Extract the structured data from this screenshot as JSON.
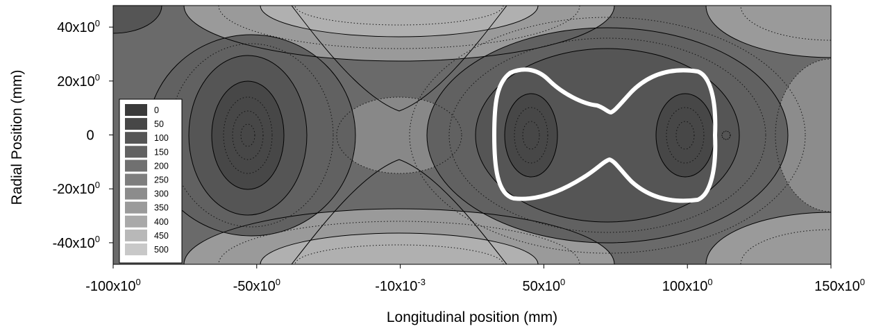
{
  "chart_data": {
    "type": "contour",
    "xlabel": "Longitudinal position (mm)",
    "ylabel": "Radial Position (mm)",
    "xlim": [
      -100,
      150
    ],
    "ylim": [
      -48,
      48
    ],
    "x_ticks": [
      {
        "value": -100,
        "base": "-100x10",
        "exp": "0"
      },
      {
        "value": -50,
        "base": "-50x10",
        "exp": "0"
      },
      {
        "value": 0,
        "base": "-10x10",
        "exp": "-3"
      },
      {
        "value": 50,
        "base": "50x10",
        "exp": "0"
      },
      {
        "value": 100,
        "base": "100x10",
        "exp": "0"
      },
      {
        "value": 150,
        "base": "150x10",
        "exp": "0"
      }
    ],
    "y_ticks": [
      {
        "value": 40,
        "base": "40x10",
        "exp": "0"
      },
      {
        "value": 20,
        "base": "20x10",
        "exp": "0"
      },
      {
        "value": 0,
        "base": "0",
        "exp": ""
      },
      {
        "value": -20,
        "base": "-20x10",
        "exp": "0"
      },
      {
        "value": -40,
        "base": "-40x10",
        "exp": "0"
      }
    ],
    "legend": {
      "placement": "middle-left",
      "levels": [
        {
          "label": "0",
          "color": "#3a3a3a"
        },
        {
          "label": "50",
          "color": "#474747"
        },
        {
          "label": "100",
          "color": "#555555"
        },
        {
          "label": "150",
          "color": "#626262"
        },
        {
          "label": "200",
          "color": "#707070"
        },
        {
          "label": "250",
          "color": "#7e7e7e"
        },
        {
          "label": "300",
          "color": "#8c8c8c"
        },
        {
          "label": "350",
          "color": "#9a9a9a"
        },
        {
          "label": "400",
          "color": "#a9a9a9"
        },
        {
          "label": "450",
          "color": "#b8b8b8"
        },
        {
          "label": "500",
          "color": "#c8c8c8"
        }
      ]
    },
    "minima": [
      {
        "x": -52,
        "y": 0
      },
      {
        "x": 45,
        "y": 0
      },
      {
        "x": 100,
        "y": 0
      }
    ],
    "highlight_contour_color": "#ffffff"
  }
}
